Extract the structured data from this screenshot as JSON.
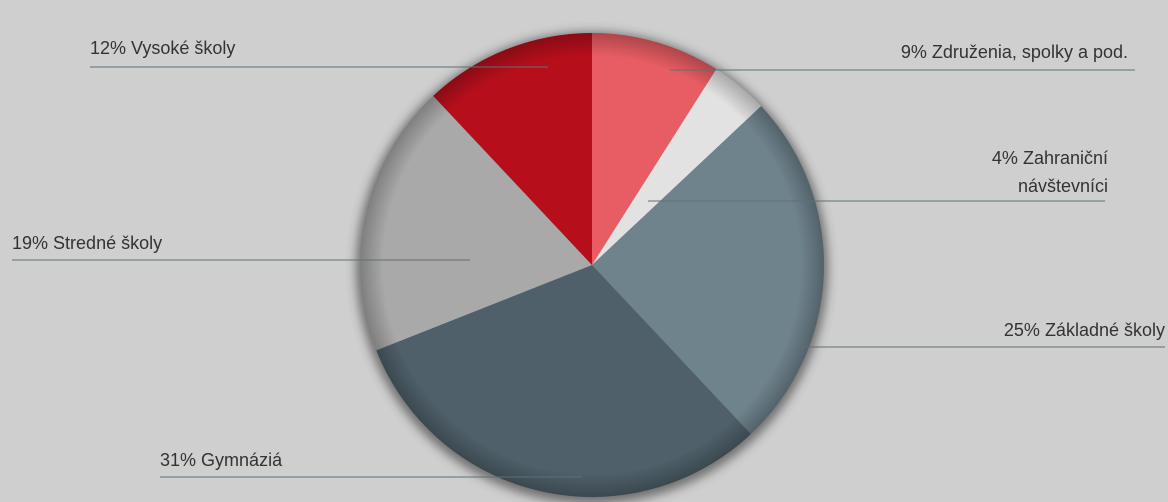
{
  "chart_data": {
    "type": "pie",
    "categories": [
      "Združenia, spolky a pod.",
      "Zahraniční návštevníci",
      "Základné školy",
      "Gymnáziá",
      "Stredné školy",
      "Vysoké školy"
    ],
    "values": [
      9,
      4,
      25,
      31,
      19,
      12
    ],
    "value_labels": [
      "9%",
      "4%",
      "25%",
      "31%",
      "19%",
      "12%"
    ],
    "colors": [
      "#e85d63",
      "#e2e2e2",
      "#6f838d",
      "#4f606a",
      "#a9a9a9",
      "#b60f1b"
    ]
  }
}
